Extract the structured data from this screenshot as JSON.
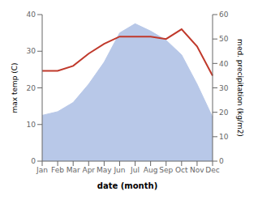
{
  "chart_data": {
    "type": "area",
    "xlabel": "date (month)",
    "ylabel": "max temp (C)",
    "y2label": "med. precipitation (kg/m2)",
    "categories": [
      "Jan",
      "Feb",
      "Mar",
      "Apr",
      "May",
      "Jun",
      "Jul",
      "Aug",
      "Sep",
      "Oct",
      "Nov",
      "Dec"
    ],
    "series": [
      {
        "type": "area",
        "color": "#b8c8e8",
        "values": [
          12.5,
          13.5,
          16.0,
          21.0,
          27.0,
          35.0,
          37.5,
          35.5,
          33.0,
          29.0,
          21.0,
          12.0
        ]
      },
      {
        "type": "line",
        "color": "#c0392b",
        "axis": "y2",
        "values": [
          37,
          37,
          39,
          44,
          48,
          51,
          51,
          51,
          50,
          54,
          47,
          35
        ]
      }
    ],
    "ylim": [
      0,
      40
    ],
    "yticks": [
      0,
      10,
      20,
      30,
      40
    ],
    "y2lim": [
      0,
      60
    ],
    "y2ticks": [
      0,
      10,
      20,
      30,
      40,
      50,
      60
    ],
    "grid": false
  }
}
